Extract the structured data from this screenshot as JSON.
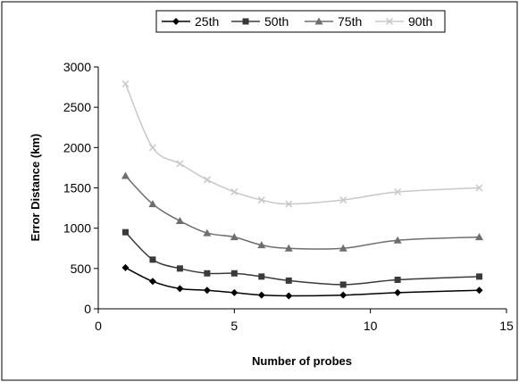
{
  "chart_data": {
    "type": "line",
    "title": "",
    "xlabel": "Number of probes",
    "ylabel": "Error Distance (km)",
    "xlim": [
      0,
      15
    ],
    "ylim": [
      0,
      3000
    ],
    "x_ticks": [
      "0",
      "5",
      "10",
      "15"
    ],
    "y_ticks": [
      "0",
      "500",
      "1000",
      "1500",
      "2000",
      "2500",
      "3000"
    ],
    "grid": false,
    "legend_position": "top",
    "x": [
      1,
      2,
      3,
      4,
      5,
      6,
      7,
      9,
      11,
      14
    ],
    "series": [
      {
        "name": "25th",
        "marker": "diamond",
        "color": "#000000",
        "values": [
          510,
          340,
          250,
          230,
          200,
          170,
          160,
          170,
          200,
          230
        ]
      },
      {
        "name": "50th",
        "marker": "square",
        "color": "#3a3a3a",
        "values": [
          950,
          610,
          500,
          440,
          440,
          400,
          350,
          300,
          360,
          400
        ]
      },
      {
        "name": "75th",
        "marker": "triangle",
        "color": "#6e6e6e",
        "values": [
          1650,
          1300,
          1090,
          940,
          890,
          790,
          750,
          750,
          850,
          890
        ]
      },
      {
        "name": "90th",
        "marker": "x",
        "color": "#c8c8c8",
        "values": [
          2790,
          2000,
          1800,
          1600,
          1450,
          1350,
          1300,
          1350,
          1450,
          1500
        ]
      }
    ]
  }
}
